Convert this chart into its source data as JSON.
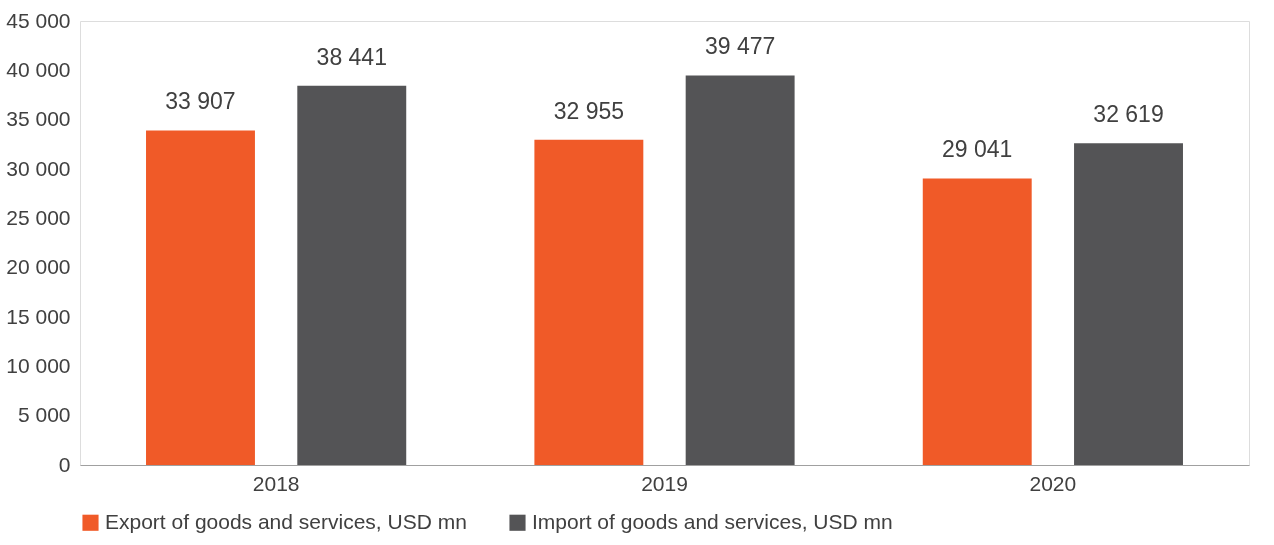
{
  "chart_data": {
    "type": "bar",
    "categories": [
      "2018",
      "2019",
      "2020"
    ],
    "series": [
      {
        "name": "Export of goods and services, USD mn",
        "color": "#f05a28",
        "values": [
          33907,
          32955,
          29041
        ],
        "value_labels": [
          "33 907",
          "32 955",
          "29 041"
        ]
      },
      {
        "name": "Import of goods and services, USD mn",
        "color": "#545456",
        "values": [
          38441,
          39477,
          32619
        ],
        "value_labels": [
          "38 441",
          "39 477",
          "32 619"
        ]
      }
    ],
    "ylim": [
      0,
      45000
    ],
    "yticks": [
      {
        "value": 0,
        "label": "0"
      },
      {
        "value": 5000,
        "label": "5 000"
      },
      {
        "value": 10000,
        "label": "10 000"
      },
      {
        "value": 15000,
        "label": "15 000"
      },
      {
        "value": 20000,
        "label": "20 000"
      },
      {
        "value": 25000,
        "label": "25 000"
      },
      {
        "value": 30000,
        "label": "30 000"
      },
      {
        "value": 35000,
        "label": "35 000"
      },
      {
        "value": 40000,
        "label": "40 000"
      },
      {
        "value": 45000,
        "label": "45 000"
      }
    ],
    "grid": false,
    "legend": "bottom"
  }
}
